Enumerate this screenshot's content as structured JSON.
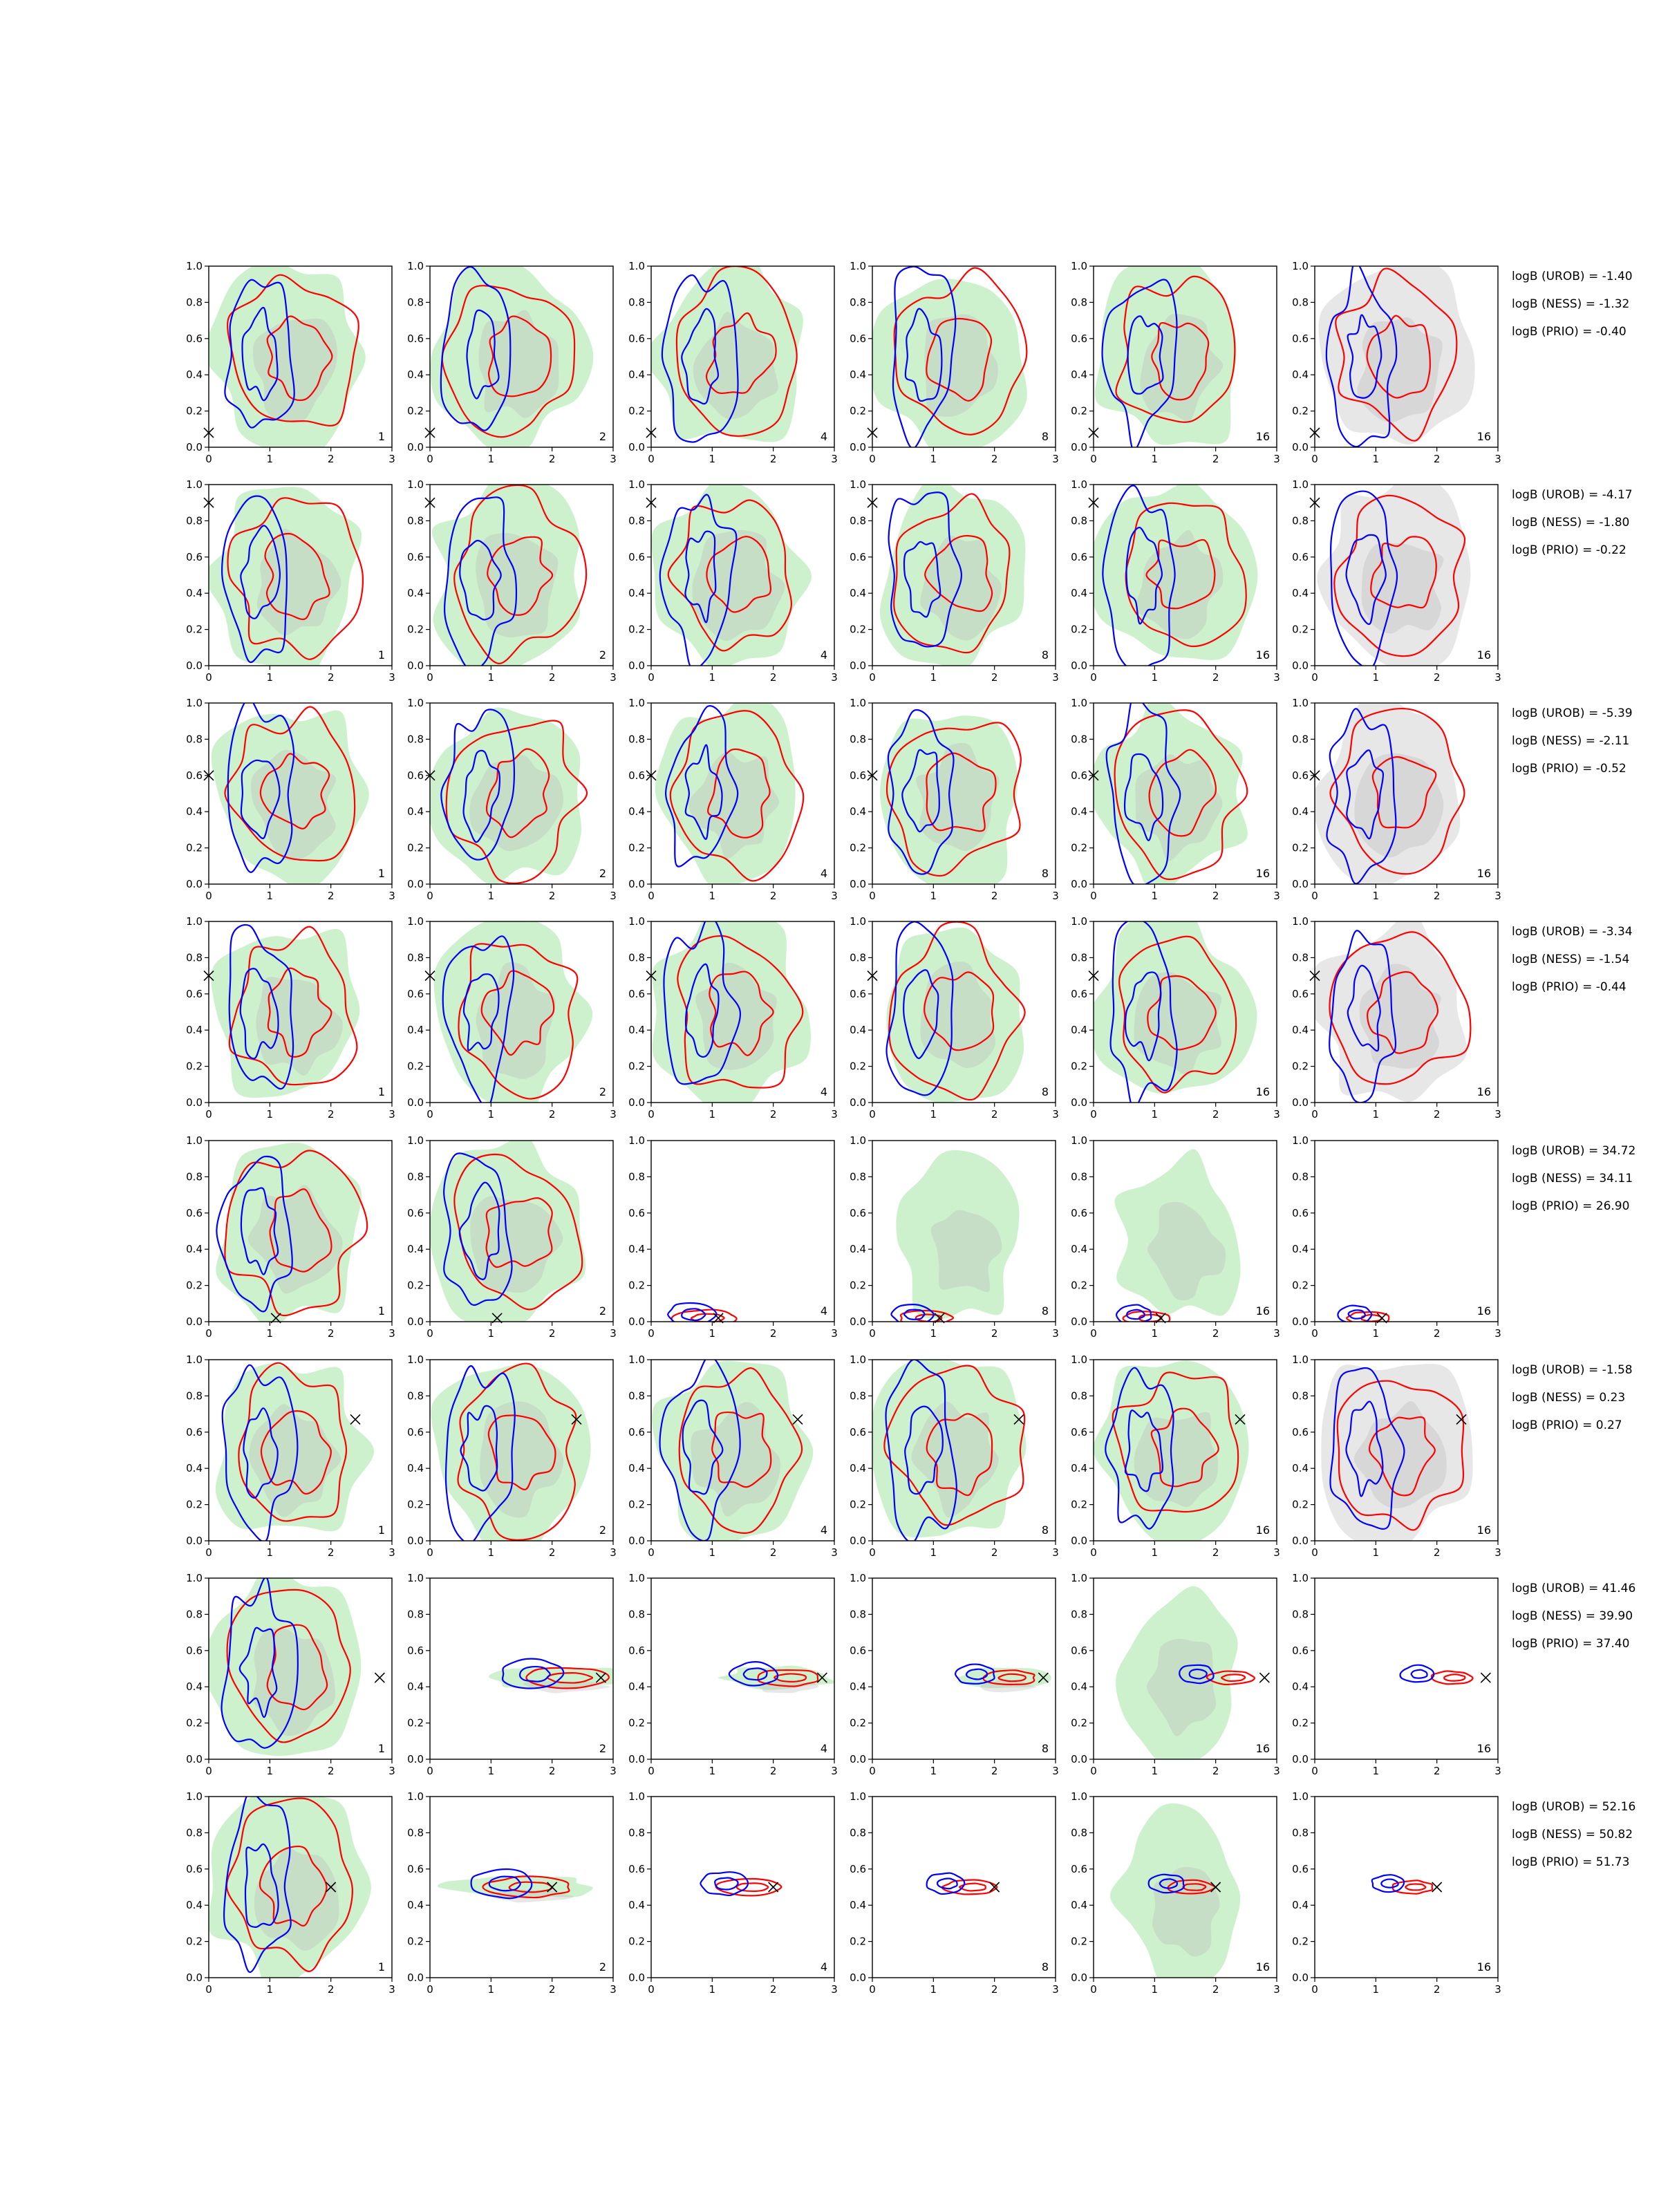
{
  "colors": {
    "green_fill": "#c8f0c8",
    "gray_fill": "#bbbbbb",
    "red_contour": "#ff0000",
    "blue_contour": "#0000ff",
    "truth_marker": "#000000"
  },
  "chart_data": {
    "type": "contour-grid",
    "title": "",
    "x_ticks": [
      "0",
      "1",
      "2",
      "3"
    ],
    "y_ticks": [
      "0.0",
      "0.2",
      "0.4",
      "0.6",
      "0.8",
      "1.0"
    ],
    "xlim": [
      0,
      3
    ],
    "ylim": [
      0,
      1
    ],
    "column_labels": [
      "1",
      "2",
      "4",
      "8",
      "16",
      "16"
    ],
    "rows": [
      {
        "truth": [
          0.0,
          0.08
        ],
        "bayes_factors": [
          "logB (UROB) = -1.40",
          "logB (NESS) = -1.32",
          "logB (PRIO) = -0.40"
        ]
      },
      {
        "truth": [
          0.0,
          0.9
        ],
        "bayes_factors": [
          "logB (UROB) = -4.17",
          "logB (NESS) = -1.80",
          "logB (PRIO) = -0.22"
        ]
      },
      {
        "truth": [
          0.0,
          0.6
        ],
        "bayes_factors": [
          "logB (UROB) = -5.39",
          "logB (NESS) = -2.11",
          "logB (PRIO) = -0.52"
        ]
      },
      {
        "truth": [
          0.0,
          0.7
        ],
        "bayes_factors": [
          "logB (UROB) = -3.34",
          "logB (NESS) = -1.54",
          "logB (PRIO) = -0.44"
        ]
      },
      {
        "truth": [
          1.1,
          0.02
        ],
        "bayes_factors": [
          "logB (UROB) = 34.72",
          "logB (NESS) = 34.11",
          "logB (PRIO) = 26.90"
        ]
      },
      {
        "truth": [
          2.4,
          0.67
        ],
        "bayes_factors": [
          "logB (UROB) = -1.58",
          "logB (NESS) = 0.23",
          "logB (PRIO) = 0.27"
        ]
      },
      {
        "truth": [
          2.8,
          0.45
        ],
        "bayes_factors": [
          "logB (UROB) = 41.46",
          "logB (NESS) = 39.90",
          "logB (PRIO) = 37.40"
        ]
      },
      {
        "truth": [
          2.0,
          0.5
        ],
        "bayes_factors": [
          "logB (UROB) = 52.16",
          "logB (NESS) = 50.82",
          "logB (PRIO) = 51.73"
        ]
      }
    ]
  }
}
